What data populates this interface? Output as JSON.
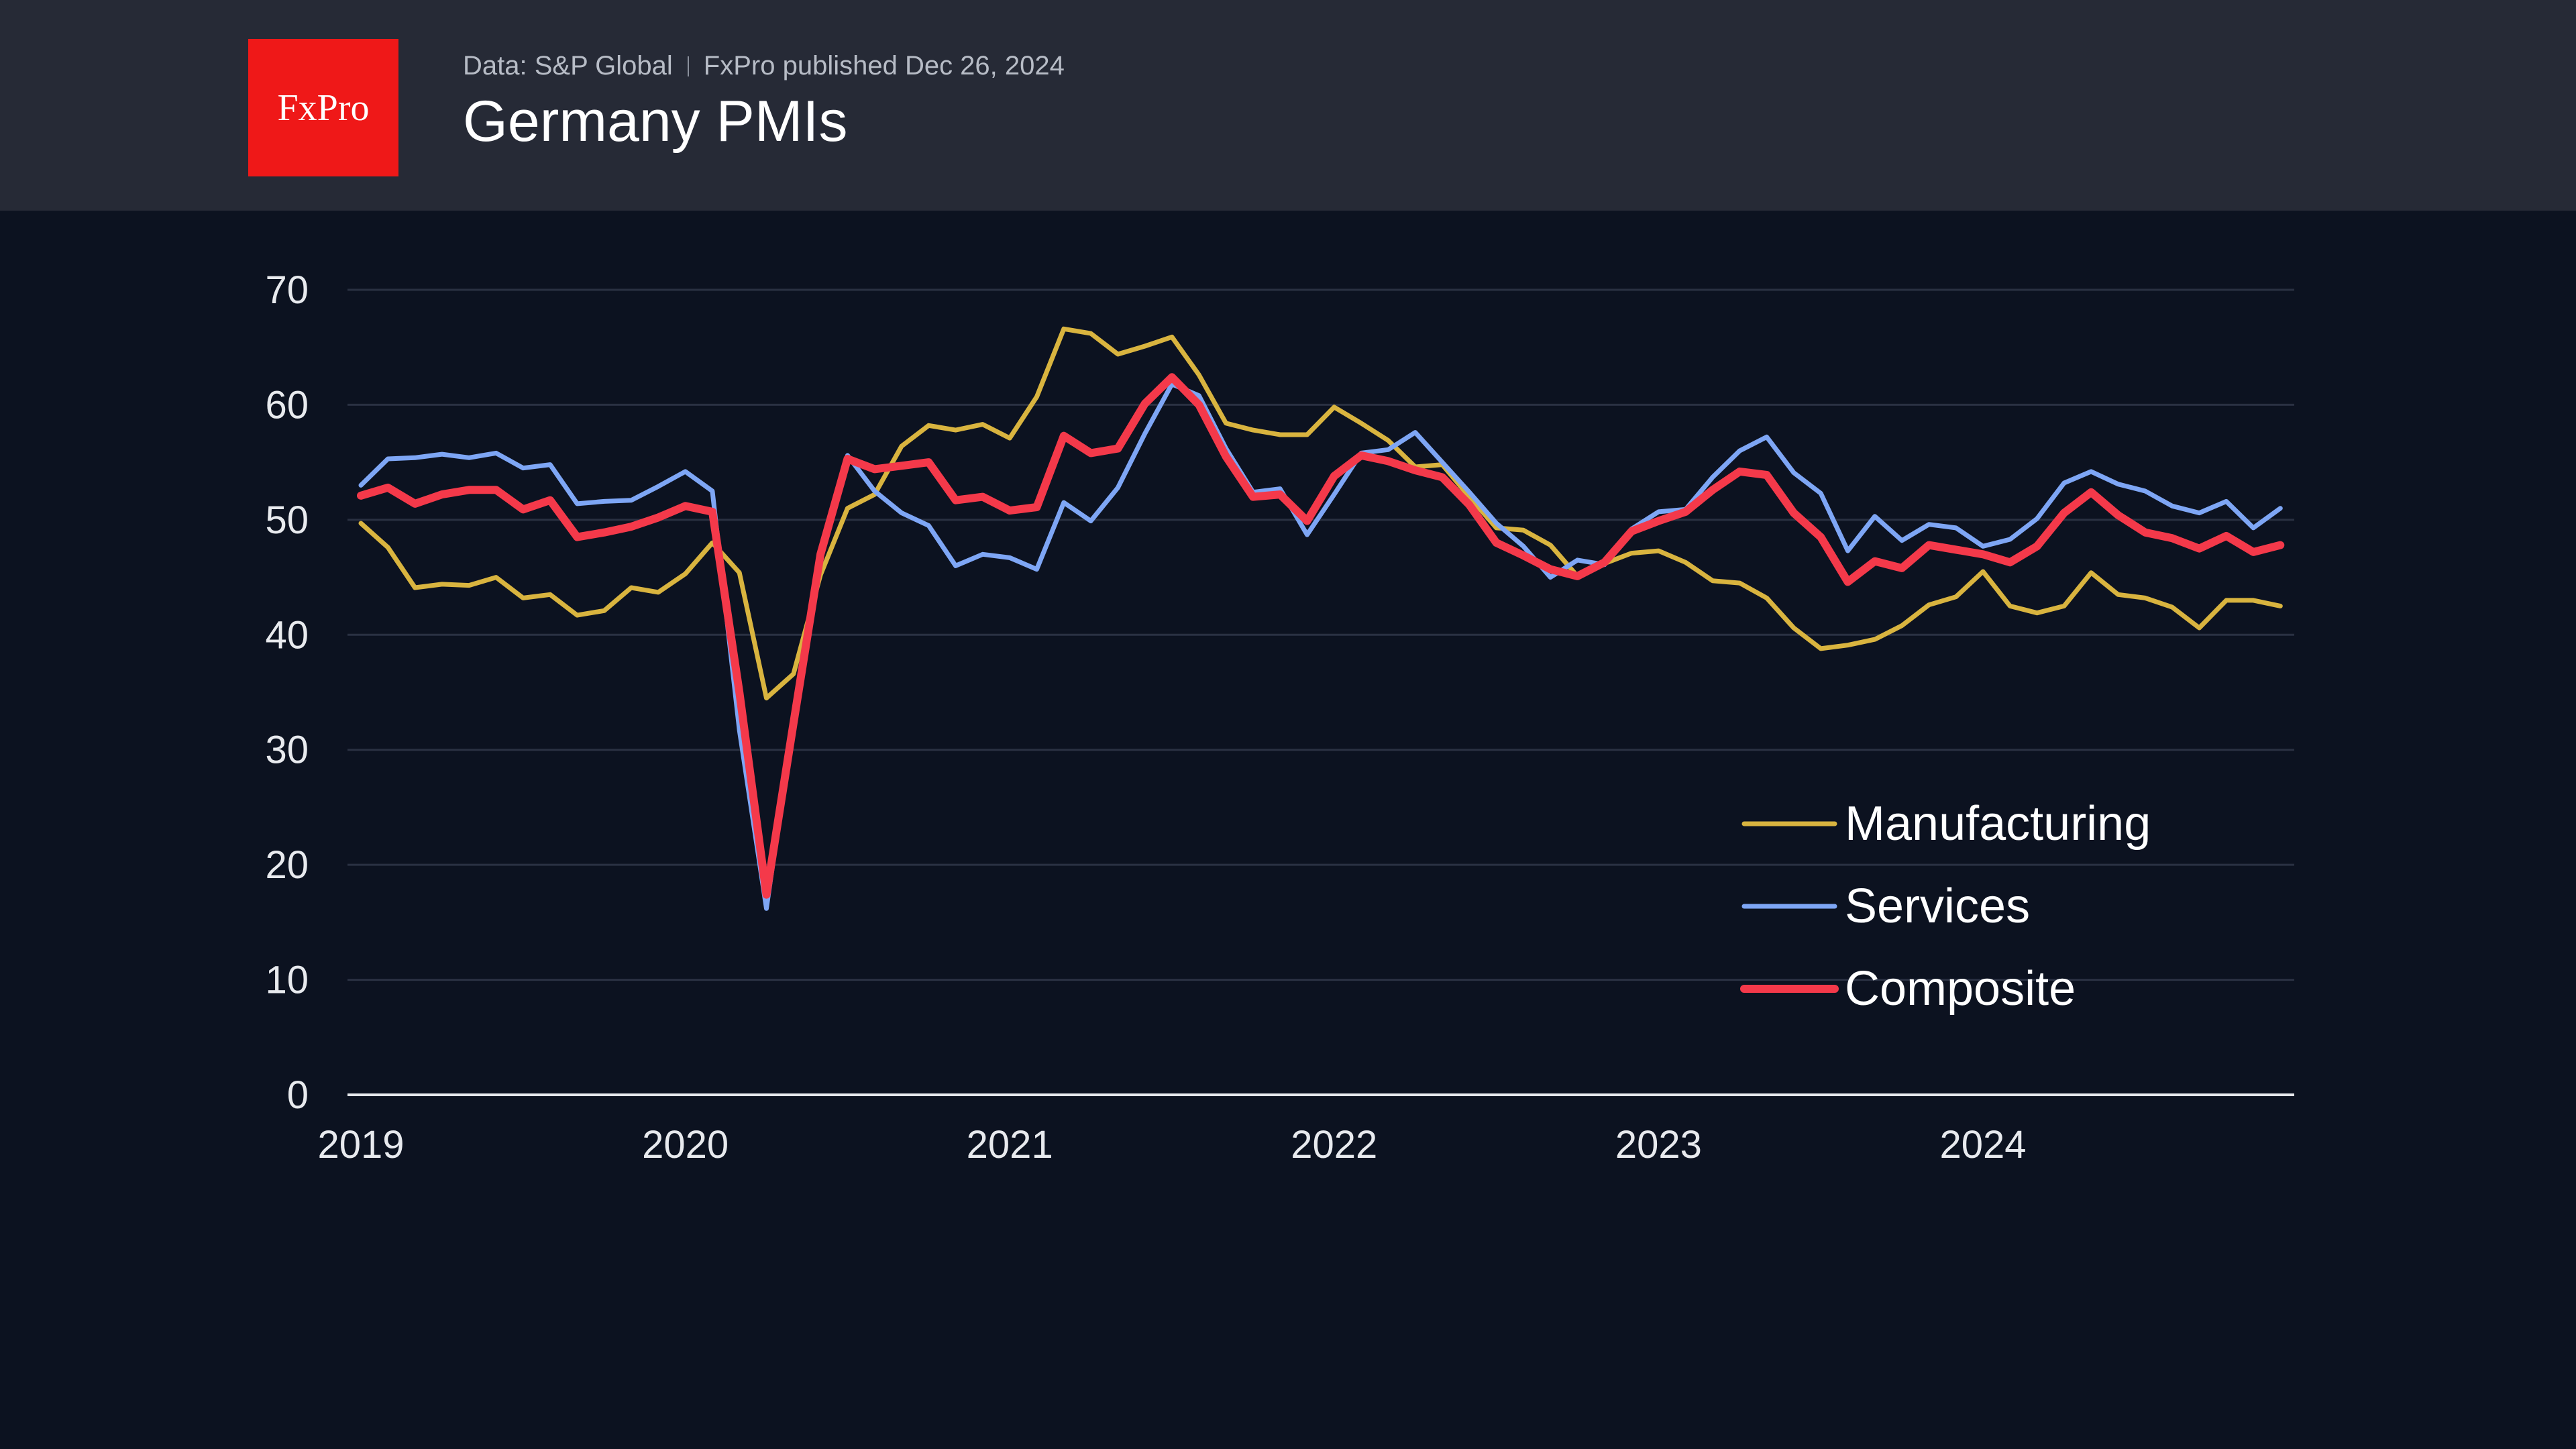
{
  "header": {
    "logo_text": "FxPro",
    "source": "Data: S&P Global",
    "published": "FxPro published Dec 26, 2024",
    "title": "Germany PMIs"
  },
  "colors": {
    "background": "#0c1220",
    "header_background": "#262a36",
    "logo_red": "#ef1818",
    "manufacturing": "#d9b43f",
    "services": "#7ea6f5",
    "composite": "#f4394a",
    "gridline": "#2a3142"
  },
  "chart_data": {
    "type": "line",
    "title": "Germany PMIs",
    "xlabel": "",
    "ylabel": "",
    "ylim": [
      0,
      70
    ],
    "yticks": [
      0,
      10,
      20,
      30,
      40,
      50,
      60,
      70
    ],
    "xticks": [
      "2019",
      "2020",
      "2021",
      "2022",
      "2023",
      "2024"
    ],
    "x_start": "2019-01",
    "x_frequency": "monthly",
    "grid": "horizontal",
    "legend_position": "lower-right",
    "series": [
      {
        "name": "Manufacturing",
        "color": "#d9b43f",
        "values": [
          49.7,
          47.6,
          44.1,
          44.4,
          44.3,
          45.0,
          43.2,
          43.5,
          41.7,
          42.1,
          44.1,
          43.7,
          45.3,
          48.0,
          45.4,
          34.5,
          36.6,
          45.2,
          51.0,
          52.2,
          56.4,
          58.2,
          57.8,
          58.3,
          57.1,
          60.7,
          66.6,
          66.2,
          64.4,
          65.1,
          65.9,
          62.6,
          58.4,
          57.8,
          57.4,
          57.4,
          59.8,
          58.4,
          56.9,
          54.6,
          54.8,
          52.0,
          49.3,
          49.1,
          47.8,
          45.1,
          46.2,
          47.1,
          47.3,
          46.3,
          44.7,
          44.5,
          43.2,
          40.6,
          38.8,
          39.1,
          39.6,
          40.8,
          42.6,
          43.3,
          45.5,
          42.5,
          41.9,
          42.5,
          45.4,
          43.5,
          43.2,
          42.4,
          40.6,
          43.0,
          43.0,
          42.5
        ]
      },
      {
        "name": "Services",
        "color": "#7ea6f5",
        "values": [
          53.0,
          55.3,
          55.4,
          55.7,
          55.4,
          55.8,
          54.5,
          54.8,
          51.4,
          51.6,
          51.7,
          52.9,
          54.2,
          52.5,
          31.7,
          16.2,
          32.6,
          47.3,
          55.6,
          52.5,
          50.6,
          49.5,
          46.0,
          47.0,
          46.7,
          45.7,
          51.5,
          49.9,
          52.8,
          57.5,
          61.8,
          60.8,
          56.2,
          52.4,
          52.7,
          48.7,
          52.2,
          55.8,
          56.1,
          57.6,
          55.0,
          52.4,
          49.7,
          47.7,
          45.0,
          46.5,
          46.1,
          49.2,
          50.7,
          50.9,
          53.7,
          56.0,
          57.2,
          54.1,
          52.3,
          47.3,
          50.3,
          48.2,
          49.6,
          49.3,
          47.7,
          48.3,
          50.1,
          53.2,
          54.2,
          53.1,
          52.5,
          51.2,
          50.6,
          51.6,
          49.3,
          51.0
        ]
      },
      {
        "name": "Composite",
        "color": "#f4394a",
        "values": [
          52.1,
          52.8,
          51.4,
          52.2,
          52.6,
          52.6,
          50.9,
          51.7,
          48.5,
          48.9,
          49.4,
          50.2,
          51.2,
          50.7,
          35.0,
          17.4,
          32.3,
          47.0,
          55.3,
          54.4,
          54.7,
          55.0,
          51.7,
          52.0,
          50.8,
          51.1,
          57.3,
          55.8,
          56.2,
          60.1,
          62.4,
          60.0,
          55.5,
          52.0,
          52.2,
          49.9,
          53.8,
          55.6,
          55.1,
          54.3,
          53.7,
          51.3,
          48.0,
          46.9,
          45.7,
          45.1,
          46.3,
          49.0,
          49.9,
          50.7,
          52.6,
          54.2,
          53.9,
          50.6,
          48.5,
          44.6,
          46.4,
          45.8,
          47.8,
          47.4,
          47.0,
          46.3,
          47.7,
          50.6,
          52.4,
          50.4,
          48.9,
          48.4,
          47.5,
          48.6,
          47.2,
          47.8
        ]
      }
    ]
  }
}
